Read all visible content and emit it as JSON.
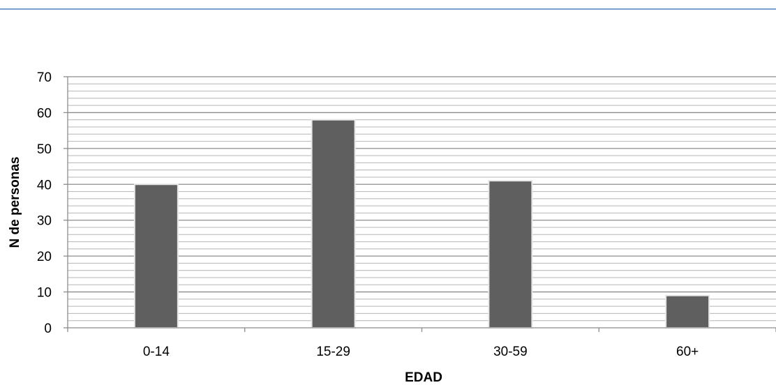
{
  "chart_data": {
    "type": "bar",
    "categories": [
      "0-14",
      "15-29",
      "30-59",
      "60+"
    ],
    "values": [
      40,
      58,
      41,
      9
    ],
    "title": "",
    "xlabel": "EDAD",
    "ylabel": "N de personas",
    "ylim": [
      0,
      70
    ],
    "yticks": [
      0,
      10,
      20,
      30,
      40,
      50,
      60,
      70
    ],
    "y_tick_labels": [
      "0",
      "10",
      "20",
      "30",
      "40",
      "50",
      "60",
      "70"
    ],
    "minor_gridline_step": 2,
    "grid": true,
    "legend": "none",
    "colors": {
      "bar": "#5f5f5f",
      "bar_edge": "#e6e6e6",
      "major_grid": "#8c8c8c",
      "minor_grid": "#b4b4b4",
      "top_rule": "#4a7ebb"
    }
  }
}
